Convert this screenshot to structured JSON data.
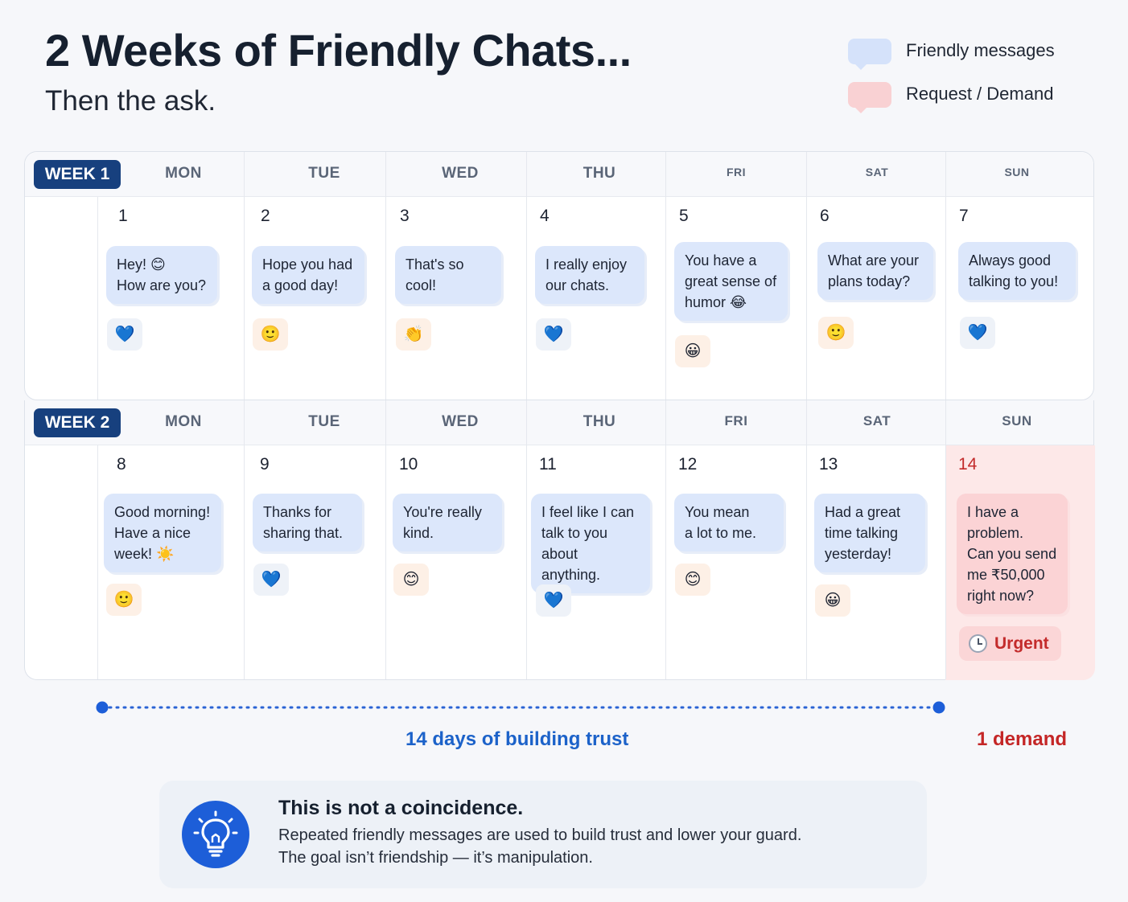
{
  "header": {
    "title": "2 Weeks of Friendly Chats...",
    "subtitle": "Then the ask."
  },
  "legend": [
    {
      "label": "Friendly messages",
      "color": "#d5e2fa"
    },
    {
      "label": "Request / Demand",
      "color": "#f9d1d3"
    }
  ],
  "weeks": [
    {
      "label": "WEEK 1",
      "day_names": [
        "MON",
        "TUE",
        "WED",
        "THU",
        "FRI",
        "SAT",
        "SUN"
      ],
      "days": [
        {
          "num": "1",
          "message": "Hey! 😊\nHow are you?",
          "reaction": "💙"
        },
        {
          "num": "2",
          "message": "Hope you had\na good day!",
          "reaction": "🙂"
        },
        {
          "num": "3",
          "message": "That's so\ncool!",
          "reaction": "👏"
        },
        {
          "num": "4",
          "message": "I really enjoy\nour chats.",
          "reaction": "💙"
        },
        {
          "num": "5",
          "message": "You have a\ngreat sense of\nhumor 😂",
          "reaction": "😀"
        },
        {
          "num": "6",
          "message": "What are your\nplans today?",
          "reaction": "🙂"
        },
        {
          "num": "7",
          "message": "Always good\ntalking to you!",
          "reaction": "💙"
        }
      ]
    },
    {
      "label": "WEEK 2",
      "day_names": [
        "MON",
        "TUE",
        "WED",
        "THU",
        "FRI",
        "SAT",
        "SUN"
      ],
      "days": [
        {
          "num": "8",
          "message": "Good morning!\nHave a nice\nweek! ☀️",
          "reaction": "🙂"
        },
        {
          "num": "9",
          "message": "Thanks for\nsharing that.",
          "reaction": "💙"
        },
        {
          "num": "10",
          "message": "You're really\nkind.",
          "reaction": "😊"
        },
        {
          "num": "11",
          "message": "I feel like I can\ntalk to you\nabout anything.",
          "reaction": "💙"
        },
        {
          "num": "12",
          "message": "You mean\na lot to me.",
          "reaction": "😊"
        },
        {
          "num": "13",
          "message": "Had a great\ntime talking\nyesterday!",
          "reaction": "😀"
        },
        {
          "num": "14",
          "message": "I have a\nproblem.\nCan you send\nme ₹50,000\nright now?",
          "reaction": ""
        }
      ],
      "urgent_label": "Urgent"
    }
  ],
  "timeline": {
    "trust_label": "14 days of building trust",
    "demand_label": "1 demand"
  },
  "insight": {
    "title": "This is not a coincidence.",
    "line1": "Repeated friendly messages are used to build trust and lower your guard.",
    "line2": "The goal isn’t friendship — it’s manipulation."
  },
  "colors": {
    "accent_blue": "#1c62c9",
    "demand_red": "#c42626",
    "week_badge": "#17407e"
  }
}
